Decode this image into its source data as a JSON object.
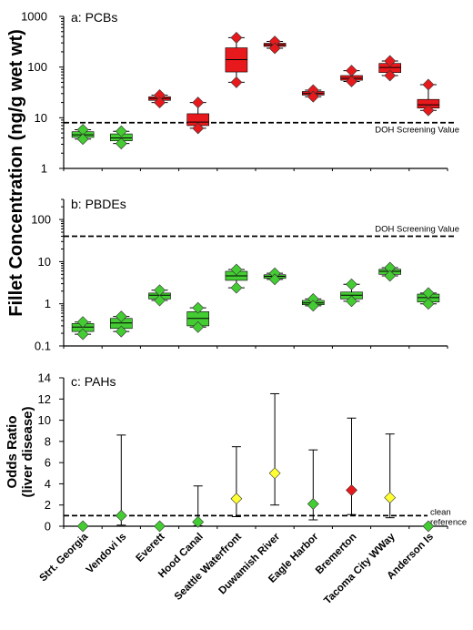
{
  "shared_ylabel": "Fillet Concentration (ng/g wet wt)",
  "colors": {
    "red": "#e8191c",
    "green": "#44cc33",
    "yellow": "#ffff33"
  },
  "chart_data": [
    {
      "type": "box",
      "panel_label": "a: PCBs",
      "scale": "log",
      "ylim": [
        1,
        1000
      ],
      "yticks": [
        "1",
        "10",
        "100",
        "1000"
      ],
      "reference_line": {
        "value": 8,
        "label": "DOH Screening Value"
      },
      "categories": [
        "Strt. Georgia",
        "Vendovi Is",
        "Everett",
        "Hood Canal",
        "Seattle Waterfront",
        "Duwamish River",
        "Eagle Harbor",
        "Bremerton",
        "Tacoma City WWay",
        "Anderson Is"
      ],
      "boxes": [
        {
          "site": "Strt. Georgia",
          "color": "green",
          "min": 3.8,
          "q1": 4.1,
          "median": 4.6,
          "q3": 5.3,
          "max": 5.8
        },
        {
          "site": "Vendovi Is",
          "color": "green",
          "min": 3.1,
          "q1": 3.5,
          "median": 4.0,
          "q3": 4.8,
          "max": 5.4
        },
        {
          "site": "Everett",
          "color": "red",
          "min": 20,
          "q1": 22,
          "median": 24,
          "q3": 26,
          "max": 28
        },
        {
          "site": "Hood Canal",
          "color": "red",
          "min": 6.2,
          "q1": 7.0,
          "median": 8.2,
          "q3": 12,
          "max": 20
        },
        {
          "site": "Seattle Waterfront",
          "color": "red",
          "min": 50,
          "q1": 80,
          "median": 140,
          "q3": 240,
          "max": 380
        },
        {
          "site": "Duwamish River",
          "color": "red",
          "min": 235,
          "q1": 255,
          "median": 275,
          "q3": 295,
          "max": 320
        },
        {
          "site": "Eagle Harbor",
          "color": "red",
          "min": 26,
          "q1": 28,
          "median": 30,
          "q3": 33,
          "max": 35
        },
        {
          "site": "Bremerton",
          "color": "red",
          "min": 52,
          "q1": 55,
          "median": 60,
          "q3": 68,
          "max": 85
        },
        {
          "site": "Tacoma City WWay",
          "color": "red",
          "min": 68,
          "q1": 78,
          "median": 98,
          "q3": 118,
          "max": 132
        },
        {
          "site": "Anderson Is",
          "color": "red",
          "min": 14,
          "q1": 15.5,
          "median": 18,
          "q3": 23,
          "max": 45
        }
      ]
    },
    {
      "type": "box",
      "panel_label": "b: PBDEs",
      "scale": "log",
      "ylim": [
        0.1,
        300
      ],
      "yticks": [
        "0.1",
        "1",
        "10",
        "100"
      ],
      "reference_line": {
        "value": 40,
        "label": "DOH Screening Value"
      },
      "categories": [
        "Strt. Georgia",
        "Vendovi Is",
        "Everett",
        "Hood Canal",
        "Seattle Waterfront",
        "Duwamish River",
        "Eagle Harbor",
        "Bremerton",
        "Tacoma City WWay",
        "Anderson Is"
      ],
      "boxes": [
        {
          "site": "Strt. Georgia",
          "color": "green",
          "min": 0.19,
          "q1": 0.22,
          "median": 0.28,
          "q3": 0.34,
          "max": 0.37
        },
        {
          "site": "Vendovi Is",
          "color": "green",
          "min": 0.22,
          "q1": 0.26,
          "median": 0.35,
          "q3": 0.45,
          "max": 0.5
        },
        {
          "site": "Everett",
          "color": "green",
          "min": 1.2,
          "q1": 1.3,
          "median": 1.6,
          "q3": 1.8,
          "max": 2.1
        },
        {
          "site": "Hood Canal",
          "color": "green",
          "min": 0.28,
          "q1": 0.3,
          "median": 0.45,
          "q3": 0.65,
          "max": 0.8
        },
        {
          "site": "Seattle Waterfront",
          "color": "green",
          "min": 2.4,
          "q1": 3.6,
          "median": 4.6,
          "q3": 5.9,
          "max": 6.5
        },
        {
          "site": "Duwamish River",
          "color": "green",
          "min": 3.8,
          "q1": 4.0,
          "median": 4.5,
          "q3": 4.9,
          "max": 5.3
        },
        {
          "site": "Eagle Harbor",
          "color": "green",
          "min": 0.9,
          "q1": 0.95,
          "median": 1.05,
          "q3": 1.2,
          "max": 1.3
        },
        {
          "site": "Bremerton",
          "color": "green",
          "min": 1.15,
          "q1": 1.3,
          "median": 1.6,
          "q3": 1.9,
          "max": 2.9
        },
        {
          "site": "Tacoma City WWay",
          "color": "green",
          "min": 4.6,
          "q1": 5.0,
          "median": 5.9,
          "q3": 6.6,
          "max": 7.2
        },
        {
          "site": "Anderson Is",
          "color": "green",
          "min": 1.0,
          "q1": 1.1,
          "median": 1.4,
          "q3": 1.7,
          "max": 1.8
        }
      ]
    },
    {
      "type": "scatter",
      "panel_label": "c: PAHs",
      "ylabel": [
        "Odds Ratio",
        "(liver disease)"
      ],
      "ylim": [
        0,
        14
      ],
      "yticks": [
        "0",
        "2",
        "4",
        "6",
        "8",
        "10",
        "12",
        "14"
      ],
      "reference_line": {
        "value": 1,
        "label_lines": [
          "clean",
          "reference"
        ]
      },
      "categories": [
        "Strt. Georgia",
        "Vendovi Is",
        "Everett",
        "Hood Canal",
        "Seattle Waterfront",
        "Duwamish River",
        "Eagle Harbor",
        "Bremerton",
        "Tacoma City WWay",
        "Anderson Is"
      ],
      "points": [
        {
          "site": "Strt. Georgia",
          "value": 0,
          "color": "green"
        },
        {
          "site": "Vendovi Is",
          "value": 1.0,
          "lower": 0.1,
          "upper": 8.6,
          "color": "green"
        },
        {
          "site": "Everett",
          "value": 0,
          "color": "green"
        },
        {
          "site": "Hood Canal",
          "value": 0.4,
          "lower": 0.05,
          "upper": 3.8,
          "color": "green"
        },
        {
          "site": "Seattle Waterfront",
          "value": 2.6,
          "lower": 0.9,
          "upper": 7.5,
          "color": "yellow"
        },
        {
          "site": "Duwamish River",
          "value": 5.0,
          "lower": 2.0,
          "upper": 12.5,
          "color": "yellow"
        },
        {
          "site": "Eagle Harbor",
          "value": 2.1,
          "lower": 0.6,
          "upper": 7.2,
          "color": "green"
        },
        {
          "site": "Bremerton",
          "value": 3.4,
          "lower": 1.1,
          "upper": 10.2,
          "color": "red"
        },
        {
          "site": "Tacoma City WWay",
          "value": 2.7,
          "lower": 0.8,
          "upper": 8.7,
          "color": "yellow"
        },
        {
          "site": "Anderson Is",
          "value": 0,
          "color": "green"
        }
      ]
    }
  ]
}
